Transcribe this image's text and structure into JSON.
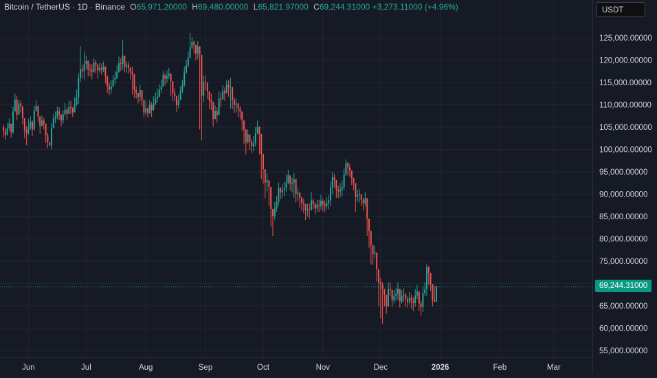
{
  "legend": {
    "symbol": "Bitcoin / TetherUS · 1D · Binance",
    "o_label": "O",
    "o_value": "65,971.20000",
    "h_label": "H",
    "h_value": "69,480.00000",
    "l_label": "L",
    "l_value": "65,821.97000",
    "c_label": "C",
    "c_value": "69,244.31000",
    "change": "+3,273.11000 (+4.96%)"
  },
  "currency_button": "USDT",
  "last_price_label": "69,244.31000",
  "colors": {
    "background": "#161a25",
    "up": "#26a69a",
    "down": "#ef5350",
    "grid": "#232632",
    "price_line": "#26a69a",
    "price_tag": "#089981"
  },
  "chart_data": {
    "type": "candlestick",
    "interval": "1D",
    "y_ticks": [
      {
        "value": 55000,
        "label": "55,000.00000"
      },
      {
        "value": 60000,
        "label": "60,000.00000"
      },
      {
        "value": 65000,
        "label": "65,000.00000"
      },
      {
        "value": 70000,
        "label": "70,000.00000"
      },
      {
        "value": 75000,
        "label": "75,000.00000"
      },
      {
        "value": 80000,
        "label": "80,000.00000"
      },
      {
        "value": 85000,
        "label": "85,000.00000"
      },
      {
        "value": 90000,
        "label": "90,000.00000"
      },
      {
        "value": 95000,
        "label": "95,000.00000"
      },
      {
        "value": 100000,
        "label": "100,000.00000"
      },
      {
        "value": 105000,
        "label": "105,000.00000"
      },
      {
        "value": 110000,
        "label": "110,000.00000"
      },
      {
        "value": 115000,
        "label": "115,000.00000"
      },
      {
        "value": 120000,
        "label": "120,000.00000"
      },
      {
        "value": 125000,
        "label": "125,000.00000"
      }
    ],
    "x_ticks": [
      {
        "label": "Jun",
        "day": 13
      },
      {
        "label": "Jul",
        "day": 43
      },
      {
        "label": "Aug",
        "day": 74
      },
      {
        "label": "Sep",
        "day": 105
      },
      {
        "label": "Oct",
        "day": 135
      },
      {
        "label": "Nov",
        "day": 166
      },
      {
        "label": "Dec",
        "day": 196
      },
      {
        "label": "2026",
        "day": 227
      },
      {
        "label": "Feb",
        "day": 258
      },
      {
        "label": "Mar",
        "day": 286
      }
    ],
    "last_price": 69244.31,
    "closes": [
      104200,
      103200,
      104800,
      105800,
      103900,
      108500,
      111200,
      107800,
      110300,
      109700,
      107000,
      104300,
      103700,
      104900,
      106200,
      104500,
      108600,
      109800,
      107400,
      105300,
      106500,
      105800,
      103200,
      101600,
      100900,
      104800,
      106900,
      107300,
      108600,
      107800,
      106500,
      107900,
      108900,
      108000,
      109500,
      109300,
      108300,
      110100,
      111700,
      116000,
      118000,
      117500,
      119200,
      119800,
      118000,
      117800,
      117400,
      119500,
      118900,
      117700,
      118300,
      117800,
      118600,
      116500,
      114200,
      113400,
      114100,
      115600,
      116000,
      117400,
      119300,
      119200,
      121000,
      118500,
      119000,
      118300,
      117400,
      116900,
      113300,
      112600,
      111800,
      113300,
      111100,
      108300,
      109200,
      108200,
      110000,
      108800,
      110300,
      111400,
      111800,
      113400,
      114100,
      116700,
      115900,
      116400,
      117000,
      115300,
      112600,
      112000,
      109900,
      111000,
      113000,
      114500,
      117200,
      118800,
      120500,
      122900,
      124100,
      123500,
      121500,
      123100,
      121200,
      112000,
      115200,
      115000,
      113000,
      111000,
      110700,
      106800,
      108600,
      107700,
      111400,
      111200,
      113100,
      112600,
      114500,
      113900,
      114000,
      111100,
      110000,
      110300,
      109200,
      108500,
      106500,
      104500,
      101600,
      103400,
      101700,
      100700,
      101400,
      103700,
      105000,
      103500,
      99000,
      95600,
      92600,
      93100,
      91600,
      86700,
      85100,
      86800,
      88200,
      91400,
      90400,
      90900,
      91300,
      92600,
      94200,
      92300,
      92500,
      93400,
      90100,
      90300,
      89200,
      88100,
      87800,
      86400,
      86700,
      86500,
      88600,
      87800,
      86800,
      87600,
      87400,
      88500,
      87700,
      87300,
      88000,
      88600,
      91400,
      93800,
      93200,
      91000,
      90600,
      91100,
      91600,
      94400,
      97000,
      96000,
      95300,
      93500,
      92500,
      89400,
      89800,
      90000,
      88700,
      87900,
      89100,
      84500,
      81800,
      78600,
      76600,
      76900,
      73200,
      70200,
      69800,
      68800,
      67500,
      64800,
      68800,
      68600,
      66200,
      67200,
      67600,
      68800,
      66000,
      67200,
      67500,
      66500,
      65800,
      66800,
      66200,
      65600,
      67300,
      68200,
      65500,
      64700,
      67800,
      68700,
      73600,
      72400,
      69900,
      66300,
      65971,
      69244
    ],
    "highs": [
      105500,
      104800,
      105900,
      106900,
      105200,
      109600,
      112500,
      112000,
      111200,
      110900,
      108900,
      106000,
      105300,
      106800,
      107400,
      106500,
      109800,
      111000,
      109000,
      107400,
      107600,
      107100,
      104900,
      103700,
      98100,
      105900,
      107900,
      108500,
      109700,
      109400,
      107900,
      108800,
      110400,
      109400,
      110900,
      110900,
      109500,
      111700,
      113400,
      117100,
      123100,
      118900,
      121900,
      121000,
      120000,
      119200,
      119100,
      120500,
      120100,
      119200,
      119400,
      119300,
      119700,
      118300,
      116100,
      115000,
      115500,
      116700,
      117600,
      118800,
      120800,
      120400,
      124500,
      120600,
      119700,
      119700,
      118500,
      118600,
      114900,
      114100,
      112700,
      114500,
      112300,
      109800,
      111000,
      109400,
      111100,
      110600,
      111900,
      112800,
      113600,
      114600,
      115600,
      117700,
      117000,
      117700,
      118300,
      116800,
      114300,
      113700,
      111600,
      112300,
      114100,
      115600,
      118600,
      120100,
      121900,
      126100,
      125100,
      124400,
      123200,
      124300,
      122300,
      113300,
      116500,
      116700,
      114300,
      112300,
      112500,
      108600,
      109900,
      109400,
      113000,
      112800,
      114400,
      113900,
      115600,
      115500,
      116100,
      112600,
      111600,
      111400,
      110400,
      109700,
      108000,
      106000,
      102800,
      104500,
      103100,
      102200,
      103000,
      105000,
      106500,
      105200,
      100800,
      97200,
      94400,
      94600,
      93100,
      88300,
      85900,
      88200,
      89600,
      92600,
      91600,
      92300,
      92800,
      94400,
      95400,
      93500,
      93700,
      94700,
      91600,
      91500,
      90500,
      89500,
      89000,
      87700,
      87900,
      87900,
      90500,
      89000,
      88100,
      88800,
      88700,
      89800,
      88900,
      88500,
      89200,
      89800,
      92800,
      95000,
      94500,
      92400,
      91900,
      92500,
      93000,
      95700,
      97800,
      97200,
      96800,
      94800,
      93700,
      91100,
      91000,
      91100,
      89900,
      89200,
      90500,
      86000,
      83200,
      80100,
      78000,
      78400,
      74700,
      71800,
      71200,
      70300,
      68800,
      66300,
      70300,
      70100,
      67600,
      68500,
      69000,
      70300,
      67700,
      68500,
      68900,
      67900,
      67100,
      68100,
      67500,
      66900,
      68800,
      69600,
      66900,
      66100,
      69500,
      70300,
      74400,
      73900,
      71400,
      67900,
      69480,
      69480
    ],
    "lows": [
      102800,
      102100,
      103600,
      104200,
      102700,
      103400,
      109600,
      106600,
      109000,
      108300,
      105600,
      102500,
      101000,
      103300,
      104400,
      103000,
      104200,
      108500,
      106200,
      103500,
      105200,
      104500,
      101500,
      100300,
      98000,
      100000,
      105500,
      105900,
      106800,
      106600,
      105200,
      105800,
      107600,
      106700,
      107900,
      107900,
      107300,
      108600,
      109700,
      110200,
      115200,
      115900,
      115700,
      117900,
      116300,
      116500,
      115700,
      117200,
      117100,
      115900,
      117200,
      116700,
      117300,
      114800,
      112700,
      112200,
      112500,
      113900,
      114500,
      115800,
      117200,
      117600,
      117900,
      117300,
      117100,
      117000,
      115700,
      112300,
      111500,
      111400,
      110300,
      110700,
      109800,
      107100,
      107800,
      107100,
      107900,
      107300,
      108700,
      109900,
      110500,
      111700,
      112600,
      113900,
      114400,
      114900,
      115800,
      112000,
      110800,
      110800,
      108400,
      109200,
      111100,
      112600,
      114000,
      117000,
      118400,
      120900,
      122500,
      121500,
      119900,
      120200,
      104500,
      102000,
      110600,
      113300,
      111300,
      109000,
      108800,
      105100,
      106900,
      106000,
      108800,
      109500,
      111400,
      110900,
      112900,
      111800,
      109200,
      109100,
      108200,
      108300,
      107300,
      106800,
      104200,
      101200,
      98900,
      101300,
      99900,
      99100,
      99600,
      100600,
      103400,
      98900,
      93300,
      92300,
      89100,
      90600,
      87400,
      82700,
      80600,
      84300,
      86000,
      87500,
      88900,
      89100,
      89600,
      90600,
      92300,
      90800,
      90400,
      89200,
      88100,
      88400,
      87000,
      86300,
      85800,
      84200,
      84900,
      84500,
      86300,
      86600,
      85500,
      86000,
      86000,
      86600,
      86200,
      85900,
      86600,
      86600,
      87300,
      89900,
      91500,
      89200,
      89100,
      89300,
      89500,
      90900,
      94100,
      94200,
      93900,
      92000,
      90900,
      86100,
      88300,
      88100,
      87300,
      86300,
      87200,
      80700,
      78000,
      74300,
      74100,
      75600,
      70400,
      65000,
      62200,
      61000,
      64900,
      63200,
      65600,
      67100,
      64800,
      65500,
      66000,
      66400,
      64600,
      65500,
      65800,
      64800,
      64600,
      65300,
      64300,
      63800,
      64800,
      66500,
      63800,
      62800,
      63600,
      67200,
      67200,
      69600,
      68300,
      64900,
      65822,
      65822
    ]
  }
}
